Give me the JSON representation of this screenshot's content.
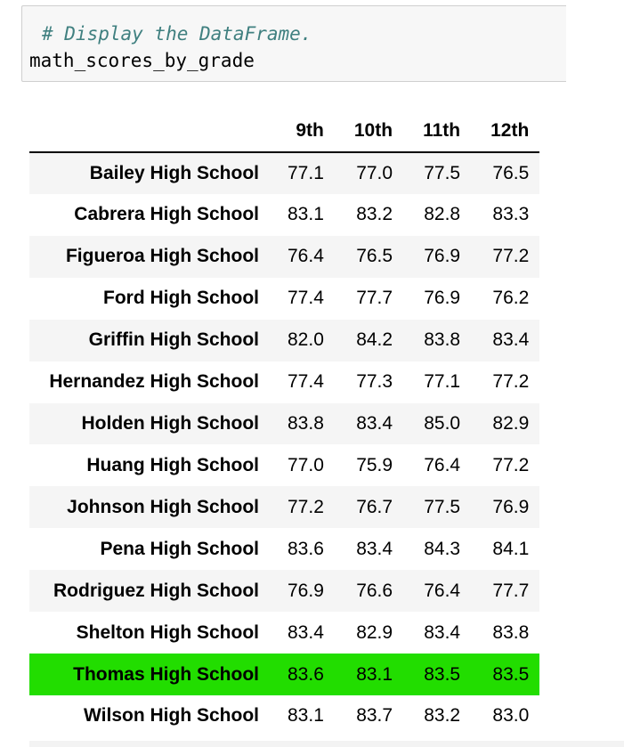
{
  "code_cell": {
    "comment": "# Display the DataFrame.",
    "code": "math_scores_by_grade"
  },
  "dataframe": {
    "columns": [
      "9th",
      "10th",
      "11th",
      "12th"
    ],
    "rows": [
      {
        "school": "Bailey High School",
        "values": [
          "77.1",
          "77.0",
          "77.5",
          "76.5"
        ]
      },
      {
        "school": "Cabrera High School",
        "values": [
          "83.1",
          "83.2",
          "82.8",
          "83.3"
        ]
      },
      {
        "school": "Figueroa High School",
        "values": [
          "76.4",
          "76.5",
          "76.9",
          "77.2"
        ]
      },
      {
        "school": "Ford High School",
        "values": [
          "77.4",
          "77.7",
          "76.9",
          "76.2"
        ]
      },
      {
        "school": "Griffin High School",
        "values": [
          "82.0",
          "84.2",
          "83.8",
          "83.4"
        ]
      },
      {
        "school": "Hernandez High School",
        "values": [
          "77.4",
          "77.3",
          "77.1",
          "77.2"
        ]
      },
      {
        "school": "Holden High School",
        "values": [
          "83.8",
          "83.4",
          "85.0",
          "82.9"
        ]
      },
      {
        "school": "Huang High School",
        "values": [
          "77.0",
          "75.9",
          "76.4",
          "77.2"
        ]
      },
      {
        "school": "Johnson High School",
        "values": [
          "77.2",
          "76.7",
          "77.5",
          "76.9"
        ]
      },
      {
        "school": "Pena High School",
        "values": [
          "83.6",
          "83.4",
          "84.3",
          "84.1"
        ]
      },
      {
        "school": "Rodriguez High School",
        "values": [
          "76.9",
          "76.6",
          "76.4",
          "77.7"
        ]
      },
      {
        "school": "Shelton High School",
        "values": [
          "83.4",
          "82.9",
          "83.4",
          "83.8"
        ]
      },
      {
        "school": "Thomas High School",
        "values": [
          "83.6",
          "83.1",
          "83.5",
          "83.5"
        ]
      },
      {
        "school": "Wilson High School",
        "values": [
          "83.1",
          "83.7",
          "83.2",
          "83.0"
        ]
      }
    ],
    "highlighted_row": "Thomas High School",
    "highlight_color": "#22dd00"
  }
}
